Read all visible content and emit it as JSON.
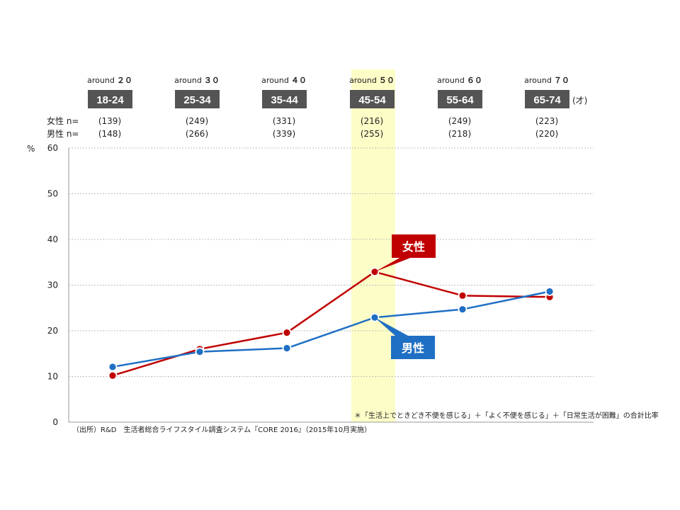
{
  "chart_data": {
    "type": "line",
    "categories": [
      "18-24",
      "25-34",
      "35-44",
      "45-54",
      "55-64",
      "65-74"
    ],
    "category_headers": [
      "around ",
      "around ",
      "around ",
      "around ",
      "around ",
      "around "
    ],
    "around_prefix": "around",
    "around_values": [
      "２０",
      "３０",
      "４０",
      "５０",
      "６０",
      "７０"
    ],
    "age_unit": "(才)",
    "n_labels": {
      "female": "女性 n=",
      "male": "男性 n="
    },
    "n_female": [
      "(139)",
      "(249)",
      "(331)",
      "(216)",
      "(249)",
      "(223)"
    ],
    "n_male": [
      "(148)",
      "(266)",
      "(339)",
      "(255)",
      "(218)",
      "(220)"
    ],
    "ylabel": "%",
    "ylim": [
      0,
      60
    ],
    "yticks": [
      "0",
      "10",
      "20",
      "30",
      "40",
      "50",
      "60"
    ],
    "grid": true,
    "highlight_category": "45-54",
    "series": [
      {
        "name": "女性",
        "color": "#c00000",
        "values": [
          10.2,
          16.0,
          19.6,
          32.9,
          27.7,
          27.4
        ]
      },
      {
        "name": "男性",
        "color": "#1f6fc5",
        "values": [
          12.1,
          15.4,
          16.2,
          22.9,
          24.7,
          28.6
        ]
      }
    ],
    "note": "＊「生活上でときどき不便を感じる」＋「よく不便を感じる」＋「日常生活が困難」の合計比率",
    "source": "（出所）R&D　生活者総合ライフスタイル調査システム『CORE 2016』（2015年10月実施）"
  }
}
